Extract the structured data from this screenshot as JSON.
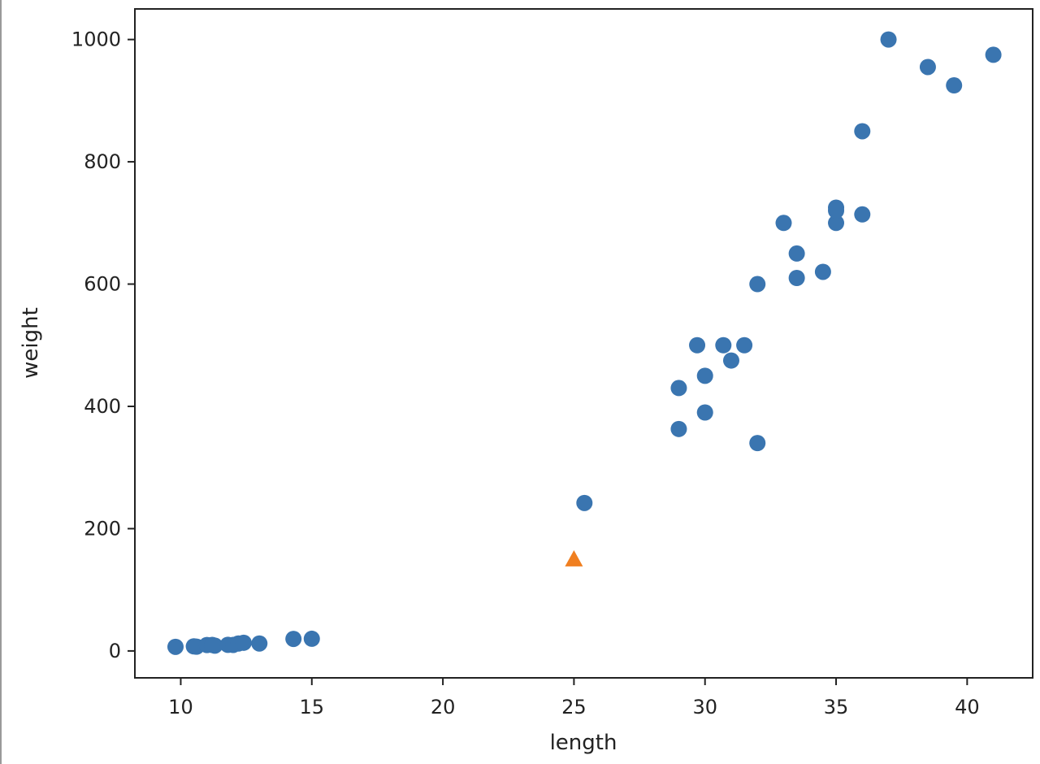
{
  "chart_data": {
    "type": "scatter",
    "title": "",
    "xlabel": "length",
    "ylabel": "weight",
    "xlim": [
      8.25,
      42.5
    ],
    "ylim": [
      -44,
      1050
    ],
    "xticks": [
      10,
      15,
      20,
      25,
      30,
      35,
      40
    ],
    "yticks": [
      0,
      200,
      400,
      600,
      800,
      1000
    ],
    "grid": false,
    "legend": "none",
    "series": [
      {
        "marker": "circle",
        "color": "#3a75b0",
        "points": [
          {
            "x": 9.8,
            "y": 6.7
          },
          {
            "x": 10.5,
            "y": 7.5
          },
          {
            "x": 10.6,
            "y": 7.0
          },
          {
            "x": 11.0,
            "y": 9.7
          },
          {
            "x": 11.2,
            "y": 9.8
          },
          {
            "x": 11.3,
            "y": 8.7
          },
          {
            "x": 11.8,
            "y": 10.0
          },
          {
            "x": 12.0,
            "y": 9.9
          },
          {
            "x": 12.2,
            "y": 12.2
          },
          {
            "x": 12.4,
            "y": 13.4
          },
          {
            "x": 13.0,
            "y": 12.2
          },
          {
            "x": 14.3,
            "y": 19.7
          },
          {
            "x": 15.0,
            "y": 19.9
          },
          {
            "x": 25.4,
            "y": 242.0
          },
          {
            "x": 29.0,
            "y": 363.0
          },
          {
            "x": 29.0,
            "y": 430.0
          },
          {
            "x": 29.7,
            "y": 500.0
          },
          {
            "x": 30.0,
            "y": 390.0
          },
          {
            "x": 30.0,
            "y": 450.0
          },
          {
            "x": 30.7,
            "y": 500.0
          },
          {
            "x": 31.0,
            "y": 475.0
          },
          {
            "x": 31.5,
            "y": 500.0
          },
          {
            "x": 32.0,
            "y": 340.0
          },
          {
            "x": 32.0,
            "y": 600.0
          },
          {
            "x": 33.0,
            "y": 700.0
          },
          {
            "x": 33.5,
            "y": 610.0
          },
          {
            "x": 33.5,
            "y": 650.0
          },
          {
            "x": 34.5,
            "y": 620.0
          },
          {
            "x": 35.0,
            "y": 700.0
          },
          {
            "x": 35.0,
            "y": 725.0
          },
          {
            "x": 35.0,
            "y": 720.0
          },
          {
            "x": 36.0,
            "y": 714.0
          },
          {
            "x": 36.0,
            "y": 850.0
          },
          {
            "x": 37.0,
            "y": 1000.0
          },
          {
            "x": 38.5,
            "y": 955.0
          },
          {
            "x": 39.5,
            "y": 925.0
          },
          {
            "x": 41.0,
            "y": 975.0
          }
        ]
      },
      {
        "marker": "triangle",
        "color": "#f07f20",
        "points": [
          {
            "x": 25.0,
            "y": 150.0
          }
        ]
      }
    ]
  }
}
